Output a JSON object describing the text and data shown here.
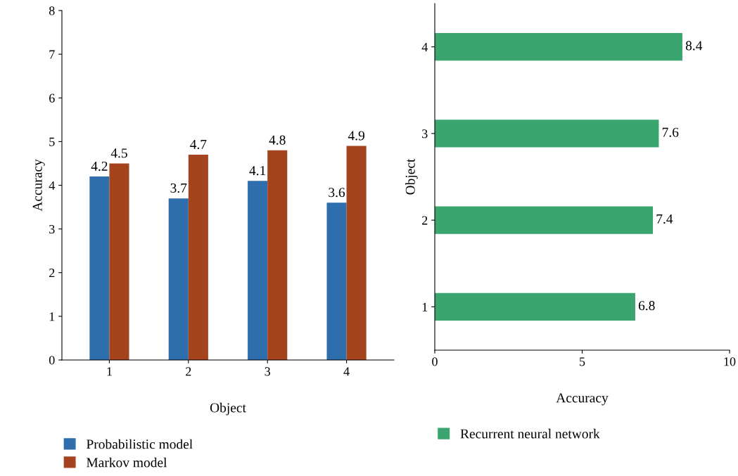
{
  "chart_data": [
    {
      "type": "bar",
      "xlabel": "Object",
      "ylabel": "Accuracy",
      "categories": [
        "1",
        "2",
        "3",
        "4"
      ],
      "ylim": [
        0,
        8
      ],
      "yticks": [
        0,
        1,
        2,
        3,
        4,
        5,
        6,
        7,
        8
      ],
      "data_labels": true,
      "legend": "bottom left",
      "grid": false,
      "series": [
        {
          "name": "Probabilistic model",
          "color": "#2f6ead",
          "values": [
            4.2,
            3.7,
            4.1,
            3.6
          ]
        },
        {
          "name": "Markov model",
          "color": "#a4441f",
          "values": [
            4.5,
            4.7,
            4.8,
            4.9
          ]
        }
      ]
    },
    {
      "type": "bar",
      "orientation": "horizontal",
      "xlabel": "Accuracy",
      "ylabel": "Object",
      "categories": [
        "4",
        "3",
        "2",
        "1"
      ],
      "xlim": [
        0,
        10
      ],
      "xticks": [
        0,
        5,
        10
      ],
      "data_labels": true,
      "legend": "bottom left",
      "grid": false,
      "series": [
        {
          "name": "Recurrent neural network",
          "color": "#3aa56e",
          "values": [
            8.4,
            7.6,
            7.4,
            6.8
          ]
        }
      ]
    }
  ]
}
